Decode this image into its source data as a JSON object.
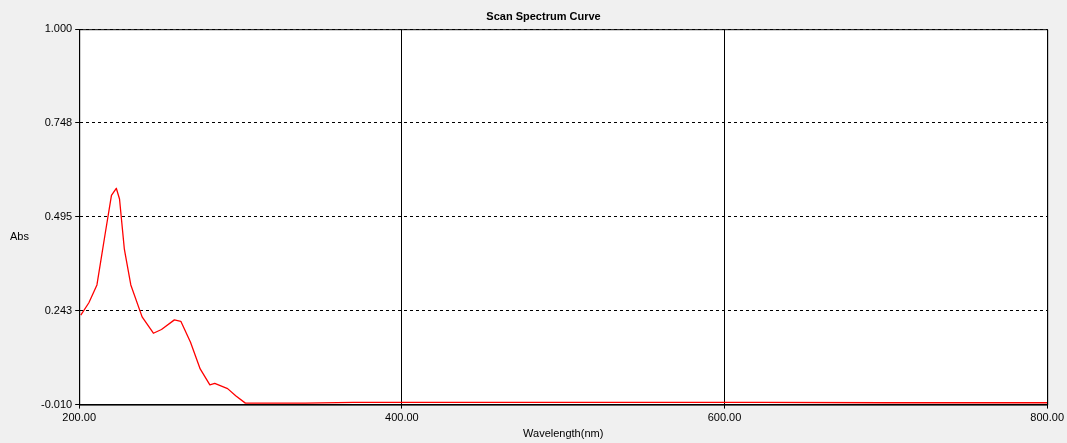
{
  "chart_data": {
    "type": "line",
    "title": "Scan Spectrum Curve",
    "xlabel": "Wavelength(nm)",
    "ylabel": "Abs",
    "series": [
      {
        "color": "#ff0000",
        "x": [
          201,
          206,
          211,
          216,
          220,
          223,
          225,
          228,
          232,
          239,
          246,
          251,
          259,
          263,
          269,
          275,
          281,
          284,
          292,
          297,
          303,
          340,
          370,
          400,
          500,
          600,
          700,
          800
        ],
        "values": [
          0.231,
          0.264,
          0.312,
          0.447,
          0.553,
          0.572,
          0.543,
          0.408,
          0.312,
          0.226,
          0.182,
          0.192,
          0.218,
          0.214,
          0.158,
          0.086,
          0.043,
          0.047,
          0.033,
          0.014,
          -0.006,
          -0.006,
          -0.004,
          -0.004,
          -0.004,
          -0.004,
          -0.005,
          -0.005
        ]
      }
    ],
    "xlim": [
      200,
      800
    ],
    "xticks": [
      {
        "value": 200,
        "label": "200.00"
      },
      {
        "value": 400,
        "label": "400.00"
      },
      {
        "value": 600,
        "label": "600.00"
      },
      {
        "value": 800,
        "label": "800.00"
      }
    ],
    "ylim": [
      -0.01,
      1
    ],
    "yticks": [
      {
        "value": -0.01,
        "label": "-0.010"
      },
      {
        "value": 0.243,
        "label": "0.243"
      },
      {
        "value": 0.495,
        "label": "0.495"
      },
      {
        "value": 0.748,
        "label": "0.748"
      },
      {
        "value": 1,
        "label": "1.000"
      }
    ],
    "grid": true,
    "legend": false,
    "marker": "none",
    "line_style": "solid"
  }
}
